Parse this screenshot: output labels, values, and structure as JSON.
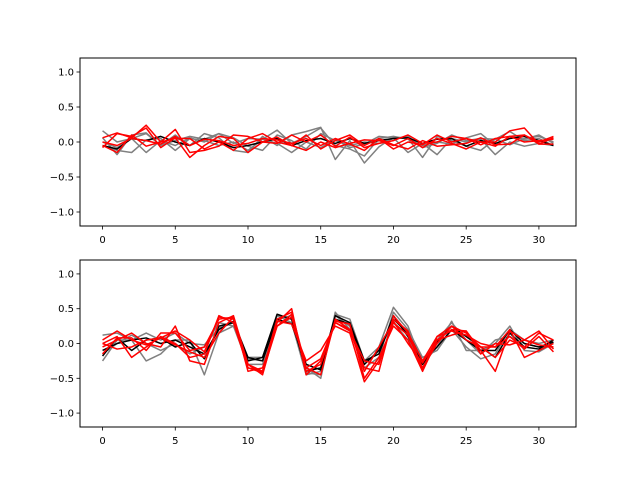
{
  "chart_data": [
    {
      "type": "line",
      "title": "",
      "xlabel": "",
      "ylabel": "",
      "xlim": [
        -1.55,
        32.55
      ],
      "ylim": [
        -1.2,
        1.2
      ],
      "xticks": [
        0,
        5,
        10,
        15,
        20,
        25,
        30
      ],
      "yticks": [
        -1.0,
        -0.5,
        0.0,
        0.5,
        1.0
      ],
      "xtick_labels": [
        "0",
        "5",
        "10",
        "15",
        "20",
        "25",
        "30"
      ],
      "ytick_labels": [
        "−1.0",
        "−0.5",
        "0.0",
        "0.5",
        "1.0"
      ],
      "grid": false,
      "x": [
        0,
        1,
        2,
        3,
        4,
        5,
        6,
        7,
        8,
        9,
        10,
        11,
        12,
        13,
        14,
        15,
        16,
        17,
        18,
        19,
        20,
        21,
        22,
        23,
        24,
        25,
        26,
        27,
        28,
        29,
        30,
        31
      ],
      "series": [
        {
          "color": "#808080",
          "values": [
            0.16,
            0.0,
            0.05,
            0.12,
            -0.05,
            0.02,
            0.08,
            0.04,
            0.12,
            -0.02,
            0.05,
            0.04,
            0.17,
            -0.02,
            0.08,
            0.2,
            -0.05,
            -0.1,
            -0.2,
            0.05,
            0.08,
            0.04,
            -0.05,
            0.0,
            -0.03,
            0.06,
            0.12,
            -0.05,
            0.08,
            0.04,
            0.1,
            -0.02
          ]
        },
        {
          "color": "#808080",
          "values": [
            0.06,
            -0.18,
            0.1,
            0.13,
            -0.05,
            0.1,
            -0.05,
            0.12,
            0.06,
            -0.12,
            -0.15,
            0.08,
            -0.05,
            0.1,
            0.15,
            0.21,
            -0.25,
            0.02,
            -0.3,
            -0.07,
            0.07,
            0.05,
            -0.22,
            0.08,
            0.02,
            -0.06,
            -0.12,
            0.04,
            0.15,
            0.02,
            0.05,
            -0.05
          ]
        },
        {
          "color": "#808080",
          "values": [
            -0.05,
            -0.12,
            -0.15,
            0.03,
            0.05,
            -0.12,
            0.05,
            0.02,
            -0.05,
            0.0,
            -0.12,
            0.04,
            -0.02,
            -0.15,
            0.0,
            -0.08,
            0.04,
            -0.08,
            -0.03,
            0.08,
            0.06,
            -0.15,
            -0.02,
            -0.18,
            0.05,
            0.0,
            0.04,
            -0.18,
            0.0,
            -0.06,
            -0.02,
            -0.05
          ]
        },
        {
          "color": "#808080",
          "values": [
            0.0,
            -0.08,
            0.05,
            -0.15,
            0.02,
            -0.05,
            0.06,
            0.0,
            0.12,
            0.06,
            -0.06,
            -0.12,
            0.1,
            0.02,
            -0.1,
            0.12,
            0.02,
            -0.05,
            0.0,
            -0.02,
            0.05,
            0.08,
            -0.08,
            -0.02,
            0.1,
            0.02,
            0.05,
            0.04,
            -0.04,
            0.05,
            0.08,
            0.0
          ]
        },
        {
          "color": "#000000",
          "values": [
            -0.05,
            -0.1,
            0.05,
            0.02,
            0.08,
            0.0,
            -0.05,
            0.05,
            0.0,
            -0.08,
            -0.05,
            0.0,
            0.05,
            -0.05,
            0.02,
            0.05,
            -0.02,
            0.05,
            -0.02,
            0.02,
            0.05,
            0.06,
            -0.02,
            0.04,
            0.05,
            -0.06,
            0.02,
            -0.02,
            0.05,
            0.08,
            0.02,
            -0.05
          ]
        },
        {
          "color": "#ff0000",
          "values": [
            -0.08,
            0.12,
            0.08,
            0.2,
            -0.08,
            0.06,
            -0.22,
            -0.05,
            0.08,
            0.05,
            -0.15,
            0.0,
            0.07,
            -0.05,
            -0.12,
            0.0,
            -0.08,
            -0.02,
            0.03,
            0.02,
            -0.05,
            0.05,
            -0.08,
            0.05,
            -0.02,
            -0.1,
            0.0,
            0.0,
            0.16,
            0.2,
            -0.03,
            0.06
          ]
        },
        {
          "color": "#ff0000",
          "values": [
            0.06,
            0.13,
            0.06,
            0.24,
            0.0,
            0.18,
            -0.15,
            -0.12,
            -0.06,
            0.1,
            0.08,
            0.0,
            -0.02,
            0.1,
            0.0,
            0.1,
            -0.06,
            0.07,
            -0.08,
            -0.02,
            0.02,
            0.1,
            -0.02,
            0.0,
            0.08,
            0.05,
            0.0,
            -0.06,
            0.08,
            0.1,
            -0.03,
            -0.03
          ]
        },
        {
          "color": "#ff0000",
          "values": [
            -0.05,
            -0.15,
            0.1,
            -0.06,
            0.0,
            0.05,
            0.05,
            -0.1,
            0.0,
            -0.12,
            0.05,
            0.12,
            0.0,
            -0.05,
            0.1,
            -0.1,
            0.02,
            0.1,
            -0.05,
            0.05,
            -0.1,
            0.0,
            -0.04,
            0.1,
            0.0,
            0.05,
            -0.04,
            0.05,
            0.08,
            0.0,
            0.02,
            0.04
          ]
        },
        {
          "color": "#ff0000",
          "values": [
            0.0,
            -0.05,
            0.05,
            0.02,
            -0.03,
            0.08,
            -0.05,
            0.04,
            0.02,
            -0.05,
            -0.02,
            0.05,
            0.03,
            -0.02,
            0.05,
            -0.05,
            0.05,
            -0.03,
            -0.12,
            0.05,
            -0.04,
            -0.1,
            0.02,
            -0.06,
            -0.04,
            -0.02,
            0.06,
            -0.04,
            -0.03,
            0.1,
            0.0,
            0.08
          ]
        }
      ]
    },
    {
      "type": "line",
      "title": "",
      "xlabel": "",
      "ylabel": "",
      "xlim": [
        -1.55,
        32.55
      ],
      "ylim": [
        -1.2,
        1.2
      ],
      "xticks": [
        0,
        5,
        10,
        15,
        20,
        25,
        30
      ],
      "yticks": [
        -1.0,
        -0.5,
        0.0,
        0.5,
        1.0
      ],
      "xtick_labels": [
        "0",
        "5",
        "10",
        "15",
        "20",
        "25",
        "30"
      ],
      "ytick_labels": [
        "−1.0",
        "−0.5",
        "0.0",
        "0.5",
        "1.0"
      ],
      "grid": false,
      "x": [
        0,
        1,
        2,
        3,
        4,
        5,
        6,
        7,
        8,
        9,
        10,
        11,
        12,
        13,
        14,
        15,
        16,
        17,
        18,
        19,
        20,
        21,
        22,
        23,
        24,
        25,
        26,
        27,
        28,
        29,
        30,
        31
      ],
      "series": [
        {
          "color": "#808080",
          "values": [
            -0.25,
            0.05,
            0.05,
            -0.25,
            -0.15,
            0.05,
            0.05,
            -0.45,
            0.15,
            0.25,
            -0.2,
            -0.2,
            0.4,
            0.3,
            -0.45,
            -0.4,
            0.42,
            0.35,
            -0.25,
            -0.05,
            0.52,
            0.25,
            -0.3,
            -0.05,
            0.32,
            -0.1,
            -0.1,
            0.0,
            0.25,
            -0.1,
            -0.12,
            0.0
          ]
        },
        {
          "color": "#808080",
          "values": [
            0.12,
            0.15,
            0.05,
            0.15,
            0.05,
            0.15,
            0.0,
            -0.02,
            0.22,
            0.3,
            -0.22,
            -0.25,
            0.4,
            0.35,
            -0.35,
            -0.5,
            0.45,
            0.2,
            -0.35,
            -0.2,
            0.45,
            0.2,
            -0.2,
            -0.1,
            0.2,
            -0.05,
            -0.22,
            -0.15,
            0.2,
            0.05,
            0.0,
            0.05
          ]
        },
        {
          "color": "#808080",
          "values": [
            -0.15,
            0.0,
            0.12,
            0.0,
            -0.1,
            0.0,
            -0.15,
            -0.05,
            0.3,
            0.25,
            -0.3,
            -0.3,
            0.35,
            0.4,
            -0.42,
            -0.45,
            0.4,
            0.25,
            -0.3,
            -0.1,
            0.3,
            0.05,
            -0.35,
            0.05,
            0.3,
            0.05,
            -0.15,
            0.05,
            0.1,
            0.0,
            -0.05,
            -0.05
          ]
        },
        {
          "color": "#000000",
          "values": [
            -0.18,
            0.08,
            -0.1,
            0.05,
            0.08,
            -0.05,
            0.02,
            -0.22,
            0.25,
            0.3,
            -0.25,
            -0.2,
            0.42,
            0.35,
            -0.4,
            -0.35,
            0.4,
            0.3,
            -0.25,
            -0.15,
            0.4,
            0.1,
            -0.3,
            0.02,
            0.25,
            0.1,
            -0.05,
            -0.2,
            0.15,
            -0.05,
            -0.08,
            0.05
          ]
        },
        {
          "color": "#000000",
          "values": [
            -0.1,
            0.0,
            0.05,
            0.08,
            0.0,
            0.05,
            -0.05,
            -0.15,
            0.2,
            0.32,
            -0.2,
            -0.25,
            0.35,
            0.28,
            -0.3,
            -0.38,
            0.35,
            0.28,
            -0.3,
            -0.1,
            0.35,
            0.15,
            -0.25,
            -0.05,
            0.2,
            0.05,
            -0.1,
            -0.1,
            0.2,
            0.0,
            -0.05,
            0.02
          ]
        },
        {
          "color": "#ff0000",
          "values": [
            0.05,
            0.18,
            0.05,
            -0.02,
            0.08,
            0.18,
            0.05,
            -0.12,
            0.38,
            0.35,
            -0.3,
            -0.45,
            0.3,
            0.5,
            -0.45,
            -0.25,
            0.32,
            0.28,
            -0.5,
            -0.2,
            0.25,
            0.05,
            -0.4,
            0.05,
            0.2,
            0.18,
            -0.1,
            -0.4,
            0.18,
            0.05,
            -0.02,
            -0.05
          ]
        },
        {
          "color": "#ff0000",
          "values": [
            0.0,
            0.1,
            -0.2,
            -0.05,
            0.1,
            0.0,
            -0.2,
            -0.15,
            0.4,
            0.3,
            -0.35,
            -0.4,
            0.32,
            0.28,
            -0.25,
            -0.1,
            0.25,
            0.15,
            -0.55,
            -0.25,
            0.3,
            0.12,
            -0.35,
            0.0,
            0.25,
            0.15,
            -0.05,
            -0.2,
            0.05,
            -0.05,
            0.15,
            0.05
          ]
        },
        {
          "color": "#ff0000",
          "values": [
            -0.05,
            0.05,
            0.15,
            0.0,
            -0.05,
            0.25,
            -0.25,
            -0.3,
            0.3,
            0.4,
            -0.3,
            -0.4,
            0.35,
            0.45,
            -0.35,
            -0.45,
            0.35,
            0.2,
            -0.35,
            -0.4,
            0.4,
            0.15,
            -0.25,
            0.1,
            0.25,
            0.05,
            -0.05,
            -0.05,
            0.2,
            -0.2,
            -0.1,
            0.0
          ]
        },
        {
          "color": "#ff0000",
          "values": [
            -0.15,
            0.08,
            0.08,
            -0.1,
            0.15,
            0.15,
            -0.1,
            -0.05,
            0.35,
            0.38,
            -0.35,
            -0.42,
            0.25,
            0.42,
            -0.4,
            -0.3,
            0.3,
            0.18,
            -0.25,
            -0.3,
            0.35,
            0.18,
            -0.38,
            0.1,
            0.18,
            0.12,
            0.0,
            -0.05,
            0.1,
            -0.08,
            0.1,
            -0.12
          ]
        },
        {
          "color": "#ff0000",
          "values": [
            0.0,
            -0.08,
            -0.05,
            0.05,
            0.08,
            -0.02,
            -0.12,
            -0.2,
            0.15,
            0.38,
            -0.4,
            -0.35,
            0.25,
            0.38,
            -0.35,
            -0.22,
            0.3,
            0.2,
            -0.4,
            -0.05,
            0.32,
            0.0,
            -0.28,
            0.05,
            0.12,
            0.18,
            -0.15,
            0.0,
            -0.02,
            0.05,
            0.18,
            -0.08
          ]
        }
      ]
    }
  ]
}
